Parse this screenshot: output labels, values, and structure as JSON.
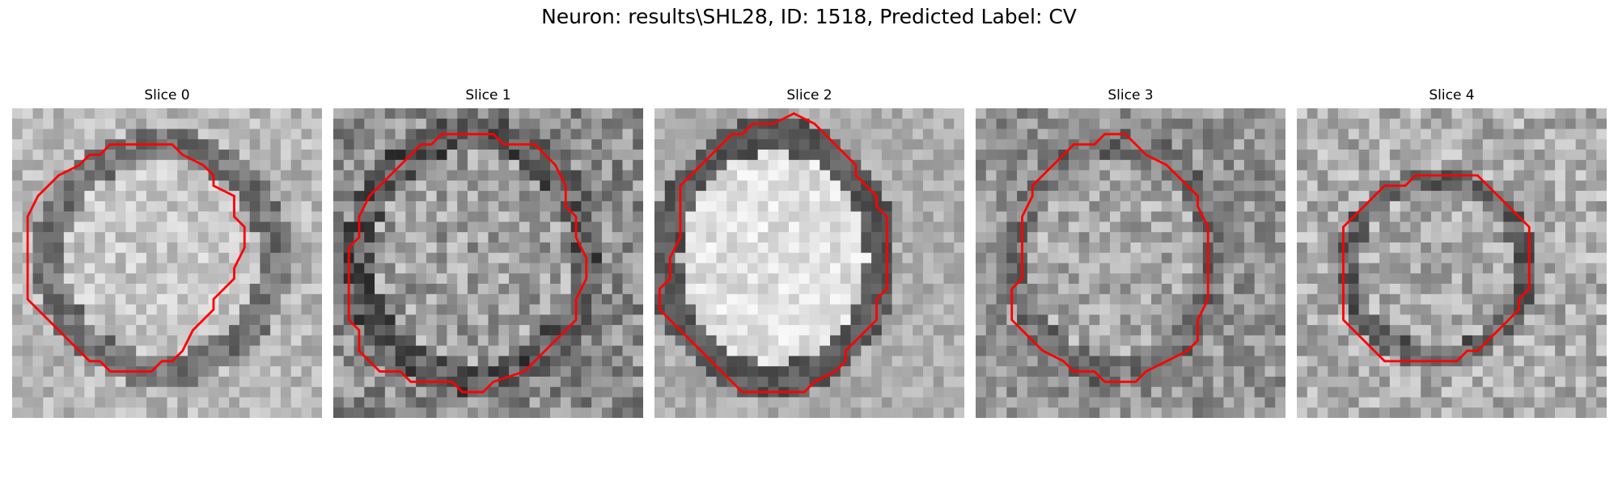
{
  "figure": {
    "title": "Neuron: results\\SHL28, ID: 1518, Predicted Label: CV",
    "contour_color": "#ff0000"
  },
  "panels": [
    {
      "title": "Slice 0",
      "contour": [
        [
          11,
          3
        ],
        [
          15,
          3
        ],
        [
          16,
          4
        ],
        [
          18,
          5
        ],
        [
          19,
          6
        ],
        [
          19,
          7
        ],
        [
          21,
          8
        ],
        [
          21,
          10
        ],
        [
          22,
          11
        ],
        [
          22,
          13
        ],
        [
          21,
          15
        ],
        [
          21,
          16
        ],
        [
          19,
          18
        ],
        [
          19,
          19
        ],
        [
          17,
          21
        ],
        [
          16,
          23
        ],
        [
          15,
          24
        ],
        [
          14,
          24
        ],
        [
          13,
          25
        ],
        [
          9,
          25
        ],
        [
          8,
          24
        ],
        [
          7,
          24
        ],
        [
          5,
          22
        ],
        [
          4,
          21
        ],
        [
          1,
          18
        ],
        [
          1,
          10
        ],
        [
          2,
          8
        ],
        [
          4,
          6
        ],
        [
          6,
          5
        ],
        [
          7,
          4
        ],
        [
          8,
          4
        ],
        [
          9,
          3
        ]
      ]
    },
    {
      "title": "Slice 1",
      "contour": [
        [
          10,
          2
        ],
        [
          15,
          2
        ],
        [
          16,
          3
        ],
        [
          19,
          3
        ],
        [
          21,
          5
        ],
        [
          22,
          7
        ],
        [
          22,
          9
        ],
        [
          23,
          10
        ],
        [
          23,
          12
        ],
        [
          24,
          14
        ],
        [
          24,
          16
        ],
        [
          23,
          18
        ],
        [
          23,
          20
        ],
        [
          21,
          22
        ],
        [
          20,
          23
        ],
        [
          18,
          25
        ],
        [
          15,
          26
        ],
        [
          14,
          27
        ],
        [
          12,
          27
        ],
        [
          11,
          26
        ],
        [
          7,
          26
        ],
        [
          6,
          25
        ],
        [
          4,
          25
        ],
        [
          2,
          23
        ],
        [
          2,
          21
        ],
        [
          1,
          20
        ],
        [
          1,
          13
        ],
        [
          2,
          12
        ],
        [
          2,
          10
        ],
        [
          3,
          8
        ],
        [
          5,
          6
        ],
        [
          6,
          5
        ],
        [
          7,
          4
        ],
        [
          8,
          3
        ],
        [
          9,
          3
        ]
      ]
    },
    {
      "title": "Slice 2",
      "contour": [
        [
          11,
          1
        ],
        [
          13,
          0
        ],
        [
          15,
          1
        ],
        [
          16,
          2
        ],
        [
          17,
          3
        ],
        [
          18,
          4
        ],
        [
          19,
          5
        ],
        [
          19,
          6
        ],
        [
          20,
          7
        ],
        [
          21,
          8
        ],
        [
          21,
          9
        ],
        [
          22,
          10
        ],
        [
          22,
          17
        ],
        [
          21,
          18
        ],
        [
          21,
          20
        ],
        [
          20,
          21
        ],
        [
          19,
          22
        ],
        [
          18,
          23
        ],
        [
          18,
          24
        ],
        [
          17,
          25
        ],
        [
          15,
          26
        ],
        [
          14,
          27
        ],
        [
          8,
          27
        ],
        [
          7,
          26
        ],
        [
          6,
          25
        ],
        [
          5,
          24
        ],
        [
          4,
          23
        ],
        [
          3,
          22
        ],
        [
          2,
          21
        ],
        [
          1,
          20
        ],
        [
          0,
          19
        ],
        [
          0,
          17
        ],
        [
          1,
          16
        ],
        [
          1,
          14
        ],
        [
          2,
          12
        ],
        [
          2,
          7
        ],
        [
          3,
          6
        ],
        [
          4,
          5
        ],
        [
          5,
          4
        ],
        [
          6,
          3
        ],
        [
          7,
          2
        ],
        [
          8,
          2
        ],
        [
          9,
          1
        ]
      ]
    },
    {
      "title": "Slice 3",
      "contour": [
        [
          9,
          3
        ],
        [
          11,
          3
        ],
        [
          12,
          2
        ],
        [
          14,
          2
        ],
        [
          15,
          3
        ],
        [
          16,
          4
        ],
        [
          18,
          5
        ],
        [
          19,
          6
        ],
        [
          20,
          7
        ],
        [
          21,
          8
        ],
        [
          21,
          9
        ],
        [
          22,
          11
        ],
        [
          22,
          18
        ],
        [
          21,
          20
        ],
        [
          21,
          22
        ],
        [
          20,
          23
        ],
        [
          18,
          24
        ],
        [
          16,
          25
        ],
        [
          15,
          26
        ],
        [
          12,
          26
        ],
        [
          11,
          25
        ],
        [
          9,
          25
        ],
        [
          8,
          24
        ],
        [
          6,
          23
        ],
        [
          5,
          22
        ],
        [
          4,
          21
        ],
        [
          3,
          20
        ],
        [
          3,
          17
        ],
        [
          4,
          16
        ],
        [
          4,
          14
        ],
        [
          4,
          10
        ],
        [
          5,
          8
        ],
        [
          5,
          7
        ],
        [
          6,
          6
        ],
        [
          7,
          5
        ],
        [
          8,
          4
        ]
      ]
    },
    {
      "title": "Slice 4",
      "contour": [
        [
          11,
          6
        ],
        [
          17,
          6
        ],
        [
          18,
          7
        ],
        [
          19,
          8
        ],
        [
          20,
          9
        ],
        [
          21,
          10
        ],
        [
          22,
          11
        ],
        [
          22,
          17
        ],
        [
          21,
          18
        ],
        [
          21,
          19
        ],
        [
          19,
          21
        ],
        [
          18,
          22
        ],
        [
          17,
          23
        ],
        [
          16,
          23
        ],
        [
          15,
          24
        ],
        [
          12,
          24
        ],
        [
          11,
          24
        ],
        [
          8,
          24
        ],
        [
          7,
          23
        ],
        [
          6,
          22
        ],
        [
          5,
          21
        ],
        [
          4,
          20
        ],
        [
          4,
          18
        ],
        [
          4,
          11
        ],
        [
          5,
          10
        ],
        [
          6,
          9
        ],
        [
          7,
          8
        ],
        [
          8,
          7
        ],
        [
          10,
          7
        ]
      ]
    }
  ]
}
